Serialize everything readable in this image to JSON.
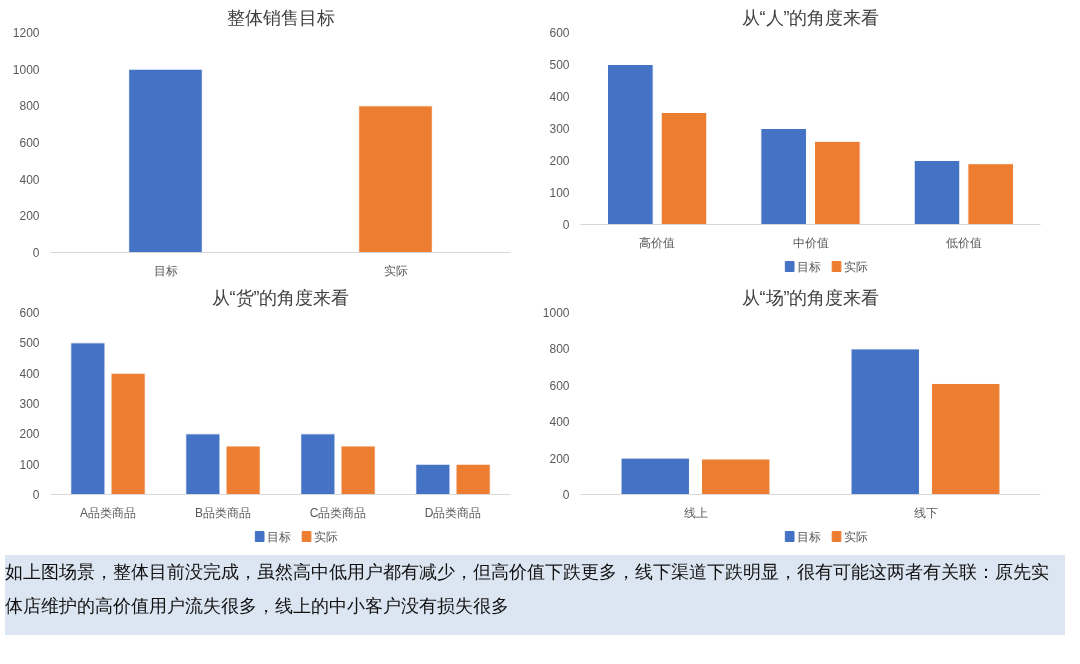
{
  "chart_data": [
    {
      "type": "bar",
      "title": "整体销售目标",
      "categories": [
        "目标",
        "实际"
      ],
      "values": [
        1000,
        800
      ],
      "colors": [
        "#4472c4",
        "#ed7d31"
      ],
      "ylim": [
        0,
        1200
      ],
      "yticks": [
        0,
        200,
        400,
        600,
        800,
        1000,
        1200
      ],
      "grid": false
    },
    {
      "type": "bar",
      "title": "从“人”的角度来看",
      "categories": [
        "高价值",
        "中价值",
        "低价值"
      ],
      "series": [
        {
          "name": "目标",
          "color": "#4472c4",
          "values": [
            500,
            300,
            200
          ]
        },
        {
          "name": "实际",
          "color": "#ed7d31",
          "values": [
            350,
            260,
            190
          ]
        }
      ],
      "ylim": [
        0,
        600
      ],
      "yticks": [
        0,
        100,
        200,
        300,
        400,
        500,
        600
      ],
      "grid": false,
      "legend": "bottom"
    },
    {
      "type": "bar",
      "title": "从“货”的角度来看",
      "categories": [
        "A品类商品",
        "B品类商品",
        "C品类商品",
        "D品类商品"
      ],
      "series": [
        {
          "name": "目标",
          "color": "#4472c4",
          "values": [
            500,
            200,
            200,
            100
          ]
        },
        {
          "name": "实际",
          "color": "#ed7d31",
          "values": [
            400,
            160,
            160,
            100
          ]
        }
      ],
      "ylim": [
        0,
        600
      ],
      "yticks": [
        0,
        100,
        200,
        300,
        400,
        500,
        600
      ],
      "grid": false,
      "legend": "bottom"
    },
    {
      "type": "bar",
      "title": "从“场”的角度来看",
      "categories": [
        "线上",
        "线下"
      ],
      "series": [
        {
          "name": "目标",
          "color": "#4472c4",
          "values": [
            200,
            800
          ]
        },
        {
          "name": "实际",
          "color": "#ed7d31",
          "values": [
            195,
            610
          ]
        }
      ],
      "ylim": [
        0,
        1000
      ],
      "yticks": [
        0,
        200,
        400,
        600,
        800,
        1000
      ],
      "grid": false,
      "legend": "bottom"
    },
    {
      "type": "other",
      "annotations": [
        "如上图场景，整体目前没完成，虽然高中低用户都有减少，但高价值下跌更多，线下渠道下跌明显，很有可能这两者有关联：原先实体店维护的高价值用户流失很多，线上的中小客户没有损失很多"
      ]
    }
  ]
}
